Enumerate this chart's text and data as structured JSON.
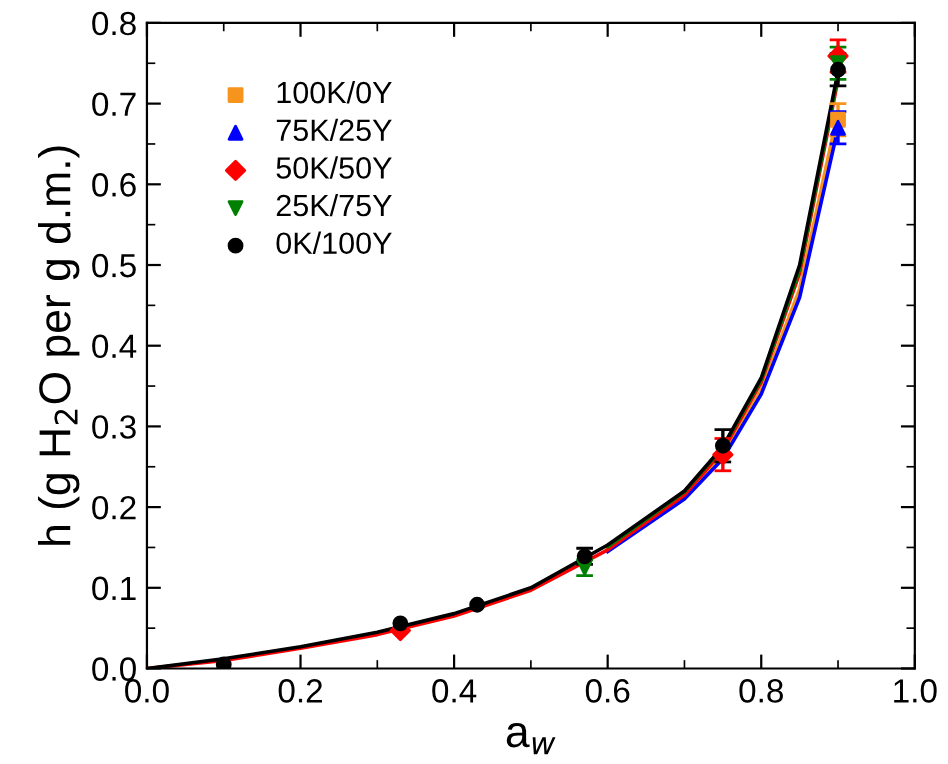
{
  "chart_data": {
    "type": "scatter",
    "xlabel": "a$_{w}$",
    "ylabel": "h (g H$_{2}$O per g d.m.)",
    "xlim": [
      0.0,
      1.0
    ],
    "ylim": [
      0.0,
      0.8
    ],
    "xticks": [
      {
        "value": 0.0,
        "label": "0.0"
      },
      {
        "value": 0.2,
        "label": "0.2"
      },
      {
        "value": 0.4,
        "label": "0.4"
      },
      {
        "value": 0.6,
        "label": "0.6"
      },
      {
        "value": 0.8,
        "label": "0.8"
      },
      {
        "value": 1.0,
        "label": "1.0"
      }
    ],
    "yticks": [
      {
        "value": 0.0,
        "label": "0.0"
      },
      0.1,
      0.2,
      0.3,
      0.4,
      0.5,
      0.6,
      0.7,
      0.8
    ],
    "grid": false,
    "legend": "top left",
    "x": [
      0.1,
      0.33,
      0.43,
      0.57,
      0.75,
      0.9
    ],
    "series": [
      {
        "name": "100K/0Y",
        "marker": "square",
        "color": "#f7941d",
        "values": [
          null,
          null,
          null,
          null,
          null,
          0.68
        ],
        "errors": [
          null,
          null,
          null,
          null,
          null,
          0.02
        ]
      },
      {
        "name": "75K/25Y",
        "marker": "triangle",
        "color": "#0000ff",
        "values": [
          null,
          null,
          null,
          null,
          null,
          0.67
        ],
        "errors": [
          null,
          null,
          null,
          null,
          null,
          0.02
        ]
      },
      {
        "name": "50K/50Y",
        "marker": "diamond",
        "color": "#ff0000",
        "values": [
          null,
          0.047,
          null,
          null,
          0.265,
          0.759
        ],
        "errors": [
          null,
          null,
          null,
          null,
          0.02,
          0.02
        ]
      },
      {
        "name": "25K/75Y",
        "marker": "triangle_down",
        "color": "#008000",
        "values": [
          null,
          null,
          null,
          0.125,
          null,
          0.75
        ],
        "errors": [
          null,
          null,
          null,
          0.01,
          null,
          0.02
        ]
      },
      {
        "name": "0K/100Y",
        "marker": "circle",
        "color": "#000000",
        "values": [
          0.005,
          0.056,
          0.079,
          0.139,
          0.276,
          0.742
        ],
        "errors": [
          null,
          null,
          null,
          0.01,
          0.02,
          0.02
        ]
      },
      {
        "type": "line",
        "color": "#f7941d",
        "x": [
          0.6,
          0.7,
          0.75,
          0.8,
          0.85,
          0.9
        ],
        "values": [
          0.148,
          0.213,
          0.265,
          0.345,
          0.47,
          0.69
        ]
      },
      {
        "type": "line",
        "color": "#0000ff",
        "x": [
          0.6,
          0.7,
          0.75,
          0.8,
          0.85,
          0.9
        ],
        "values": [
          0.145,
          0.21,
          0.26,
          0.34,
          0.46,
          0.67
        ]
      },
      {
        "type": "line",
        "color": "#ff0000",
        "x": [
          0,
          0.1,
          0.2,
          0.3,
          0.4,
          0.5,
          0.6,
          0.7,
          0.75,
          0.8,
          0.85,
          0.9
        ],
        "values": [
          0,
          0.01,
          0.025,
          0.042,
          0.065,
          0.097,
          0.147,
          0.215,
          0.27,
          0.355,
          0.49,
          0.73
        ]
      },
      {
        "type": "line",
        "color": "#008000",
        "x": [
          0.6,
          0.7,
          0.75,
          0.8,
          0.85,
          0.9
        ],
        "values": [
          0.151,
          0.219,
          0.274,
          0.358,
          0.495,
          0.735
        ]
      },
      {
        "type": "line",
        "color": "#000000",
        "x": [
          0,
          0.1,
          0.2,
          0.3,
          0.4,
          0.5,
          0.6,
          0.7,
          0.75,
          0.8,
          0.85,
          0.9
        ],
        "values": [
          0,
          0.012,
          0.027,
          0.045,
          0.068,
          0.1,
          0.153,
          0.22,
          0.275,
          0.36,
          0.5,
          0.74
        ]
      }
    ]
  }
}
